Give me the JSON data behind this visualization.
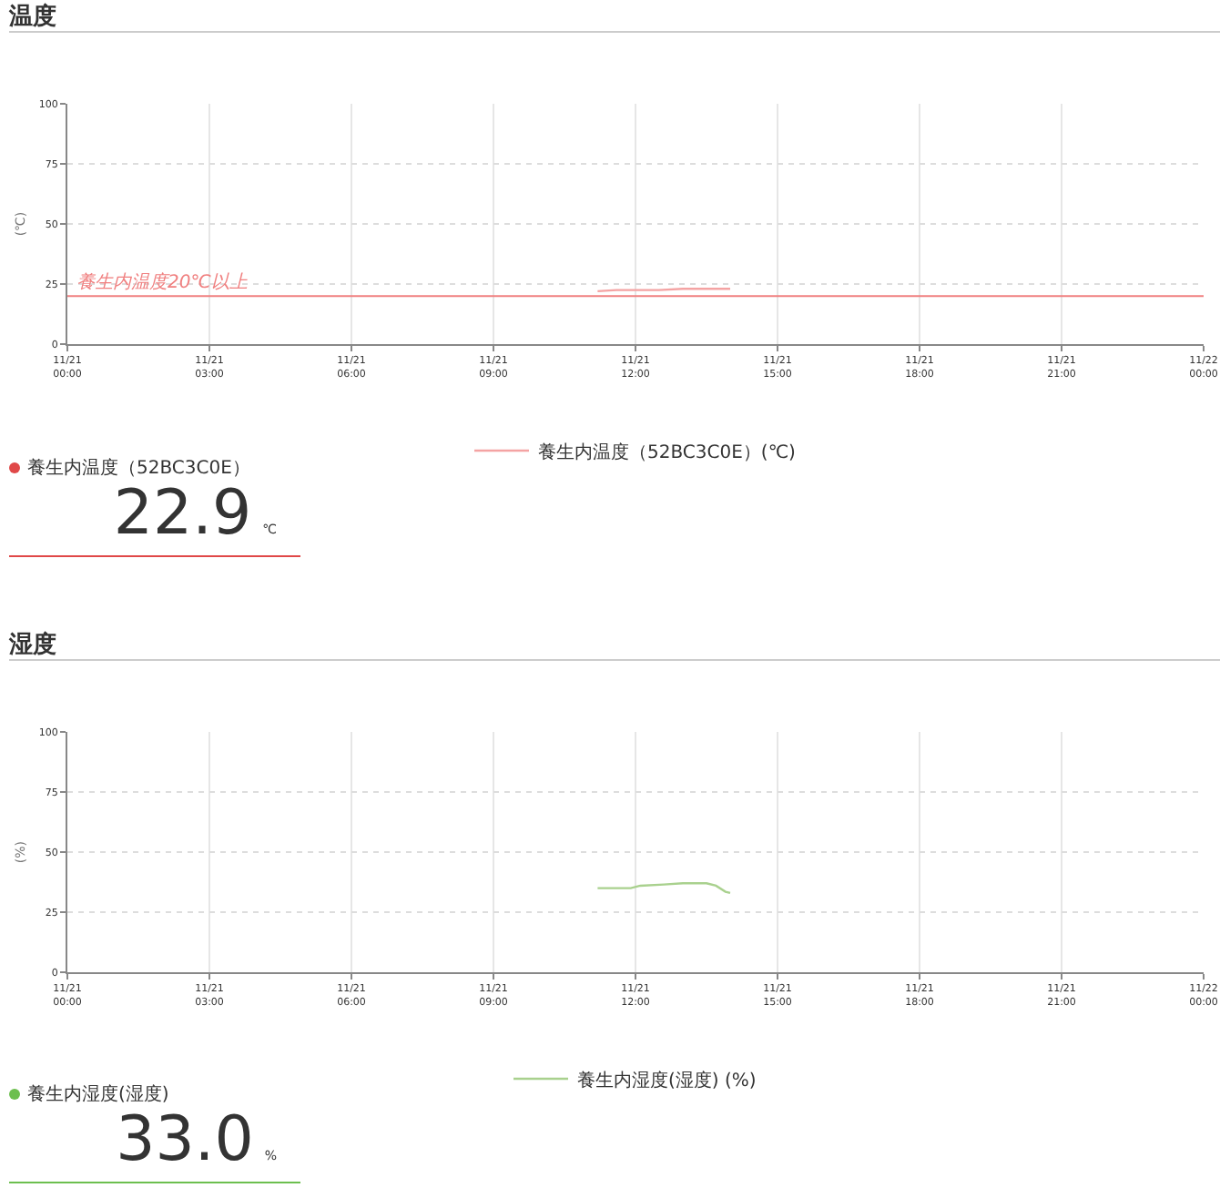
{
  "chart_data": [
    {
      "type": "line",
      "title": "温度",
      "ylabel": "(℃)",
      "xlim": [
        "--11-21T00:00",
        "--11-22T00:00"
      ],
      "ylim": [
        0,
        100
      ],
      "yticks": [
        0,
        25,
        50,
        75,
        100
      ],
      "xticks": [
        {
          "value": "--11-21T00:00",
          "label": "11/21\n00:00"
        },
        {
          "value": "--11-21T03:00",
          "label": "11/21\n03:00"
        },
        {
          "value": "--11-21T06:00",
          "label": "11/21\n06:00"
        },
        {
          "value": "--11-21T09:00",
          "label": "11/21\n09:00"
        },
        {
          "value": "--11-21T12:00",
          "label": "11/21\n12:00"
        },
        {
          "value": "--11-21T15:00",
          "label": "11/21\n15:00"
        },
        {
          "value": "--11-21T18:00",
          "label": "11/21\n18:00"
        },
        {
          "value": "--11-21T21:00",
          "label": "11/21\n21:00"
        },
        {
          "value": "--11-22T00:00",
          "label": "11/22\n00:00"
        }
      ],
      "series": [
        {
          "name": "養生内温度（52BC3C0E）(℃)",
          "color": "#f4a3a3",
          "x": [
            "--11-21T11:12",
            "--11-21T11:36",
            "--11-21T12:00",
            "--11-21T12:30",
            "--11-21T13:00",
            "--11-21T13:30",
            "--11-21T14:00"
          ],
          "values": [
            22,
            22.5,
            22.5,
            22.5,
            23,
            23,
            23
          ]
        }
      ],
      "ref_lines": [
        {
          "axis": "y",
          "value": 20,
          "label": "養生内温度20℃以上",
          "color": "#f08080"
        }
      ],
      "grid": true,
      "legend": "bottom",
      "marker": "none",
      "line_style": "solid"
    },
    {
      "type": "other",
      "title": "養生内温度（52BC3C0E）",
      "value_labels": [
        "22.9"
      ],
      "annotations": [
        "℃"
      ],
      "color": "#e04848"
    },
    {
      "type": "line",
      "title": "湿度",
      "ylabel": "(%)",
      "xlim": [
        "--11-21T00:00",
        "--11-22T00:00"
      ],
      "ylim": [
        0,
        100
      ],
      "yticks": [
        0,
        25,
        50,
        75,
        100
      ],
      "xticks": [
        {
          "value": "--11-21T00:00",
          "label": "11/21\n00:00"
        },
        {
          "value": "--11-21T03:00",
          "label": "11/21\n03:00"
        },
        {
          "value": "--11-21T06:00",
          "label": "11/21\n06:00"
        },
        {
          "value": "--11-21T09:00",
          "label": "11/21\n09:00"
        },
        {
          "value": "--11-21T12:00",
          "label": "11/21\n12:00"
        },
        {
          "value": "--11-21T15:00",
          "label": "11/21\n15:00"
        },
        {
          "value": "--11-21T18:00",
          "label": "11/21\n18:00"
        },
        {
          "value": "--11-21T21:00",
          "label": "11/21\n21:00"
        },
        {
          "value": "--11-22T00:00",
          "label": "11/22\n00:00"
        }
      ],
      "series": [
        {
          "name": "養生内湿度(湿度) (%)",
          "color": "#a9d18e",
          "x": [
            "--11-21T11:12",
            "--11-21T11:54",
            "--11-21T12:06",
            "--11-21T12:36",
            "--11-21T13:00",
            "--11-21T13:30",
            "--11-21T13:42",
            "--11-21T13:54",
            "--11-21T14:00"
          ],
          "values": [
            35,
            35,
            36,
            36.5,
            37,
            37,
            36,
            33.5,
            33
          ]
        }
      ],
      "grid": true,
      "legend": "bottom",
      "marker": "none",
      "line_style": "solid"
    },
    {
      "type": "other",
      "title": "養生内湿度(湿度)",
      "value_labels": [
        "33.0"
      ],
      "annotations": [
        "%"
      ],
      "color": "#6cbf4f"
    }
  ]
}
